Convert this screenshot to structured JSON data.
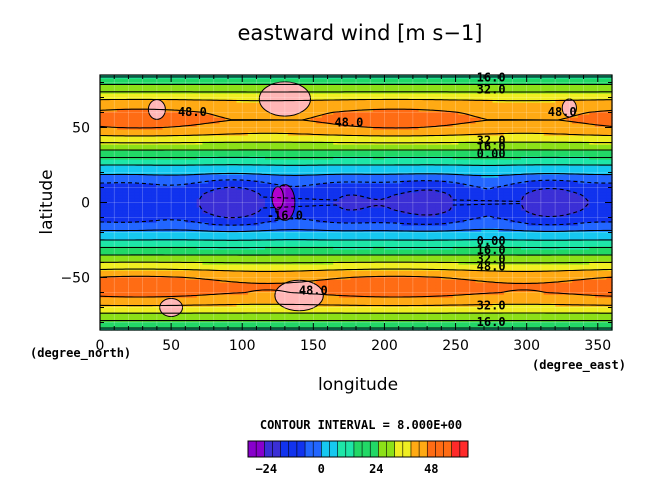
{
  "chart_data": {
    "type": "heatmap",
    "title": "eastward wind [m s−1]",
    "xlabel": "longitude",
    "ylabel": "latitude",
    "x_unit": "(degree_east)",
    "y_unit": "(degree_north)",
    "xlim": [
      0,
      360
    ],
    "ylim": [
      -85,
      85
    ],
    "x_ticks": [
      0,
      50,
      100,
      150,
      200,
      250,
      300,
      350
    ],
    "y_ticks": [
      -50,
      0,
      50
    ],
    "grid": true,
    "contour_interval_label": "CONTOUR INTERVAL = 8.000E+00",
    "colorbar_ticks": [
      -24,
      0,
      24,
      48
    ],
    "levels": [
      -32,
      -24,
      -16,
      -8,
      0,
      8,
      16,
      24,
      32,
      40,
      48,
      56,
      64
    ],
    "colors": [
      "#8800cc",
      "#3b2fd6",
      "#1133ee",
      "#2266ff",
      "#16c8f0",
      "#1ee6a8",
      "#22d866",
      "#8ce018",
      "#f0ee22",
      "#ffaa14",
      "#ff6c14",
      "#ff2a2a",
      "#ffb6b6"
    ],
    "contour_labels": [
      "16.0",
      "32.0",
      "48.0",
      "48.0",
      "48.0",
      "32.0",
      "16.0",
      "0.00",
      "-16.0",
      "0.00",
      "16.0",
      "32.0",
      "48.0",
      "48.0",
      "32.0",
      "16.0"
    ],
    "zonal_profile": {
      "lat": [
        -85,
        -80,
        -75,
        -70,
        -65,
        -60,
        -55,
        -50,
        -45,
        -40,
        -35,
        -30,
        -25,
        -20,
        -15,
        -10,
        -5,
        0,
        5,
        10,
        15,
        20,
        25,
        30,
        35,
        40,
        45,
        50,
        55,
        60,
        65,
        70,
        75,
        80,
        85
      ],
      "u": [
        14,
        22,
        30,
        38,
        44,
        50,
        52,
        47,
        40,
        32,
        24,
        16,
        8,
        2,
        -6,
        -12,
        -15,
        -16,
        -15,
        -12,
        -6,
        2,
        8,
        16,
        24,
        32,
        40,
        46,
        50,
        48,
        44,
        38,
        30,
        22,
        14
      ]
    }
  }
}
